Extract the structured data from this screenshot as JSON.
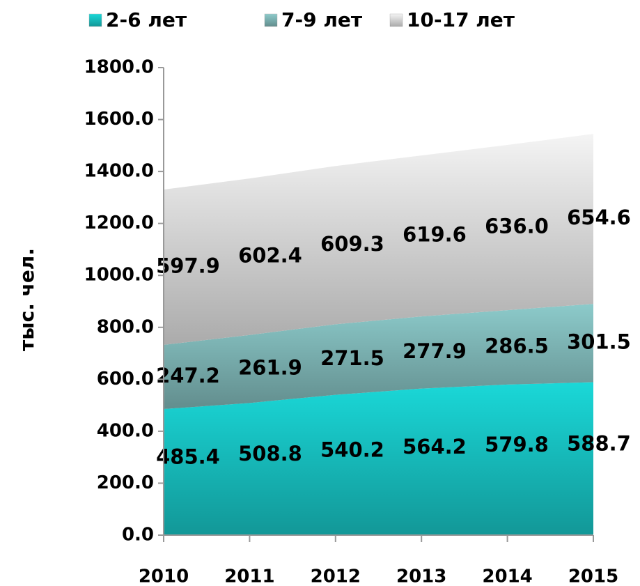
{
  "chart_data": {
    "type": "stacked_area",
    "y_label": "тыс. чел.",
    "categories": [
      "2010",
      "2011",
      "2012",
      "2013",
      "2014",
      "2015"
    ],
    "series": [
      {
        "name": "2-6 лет",
        "color": "#1ad8d8",
        "values": [
          485.4,
          508.8,
          540.2,
          564.2,
          579.8,
          588.7
        ],
        "value_labels": [
          "485.4",
          "508.8",
          "540.2",
          "564.2",
          "579.8",
          "588.7"
        ]
      },
      {
        "name": "7-9 лет",
        "color": "#8ccaca",
        "values": [
          247.2,
          261.9,
          271.5,
          277.9,
          286.5,
          301.5
        ],
        "value_labels": [
          "247.2",
          "261.9",
          "271.5",
          "277.9",
          "286.5",
          "301.5"
        ]
      },
      {
        "name": "10-17 лет",
        "color": "#f4f4f4",
        "values": [
          597.9,
          602.4,
          609.3,
          619.6,
          636.0,
          654.6
        ],
        "value_labels": [
          "597.9",
          "602.4",
          "609.3",
          "619.6",
          "636.0",
          "654.6"
        ]
      }
    ],
    "ylim": [
      0,
      1800
    ],
    "yticks": [
      {
        "value": 0,
        "label": "0.0"
      },
      {
        "value": 200,
        "label": "200.0"
      },
      {
        "value": 400,
        "label": "400.0"
      },
      {
        "value": 600,
        "label": "600.0"
      },
      {
        "value": 800,
        "label": "800.0"
      },
      {
        "value": 1000,
        "label": "1000.0"
      },
      {
        "value": 1200,
        "label": "1200.0"
      },
      {
        "value": 1400,
        "label": "1400.0"
      },
      {
        "value": 1600,
        "label": "1600.0"
      },
      {
        "value": 1800,
        "label": "1800.0"
      }
    ],
    "legend": "top"
  }
}
